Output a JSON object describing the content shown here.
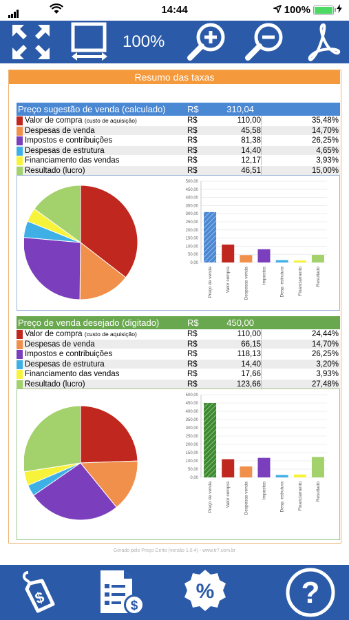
{
  "status_bar": {
    "time": "14:44",
    "battery": "100%"
  },
  "toolbar": {
    "zoom": "100%"
  },
  "report": {
    "title": "Resumo das taxas",
    "currency": "R$",
    "footer": "Gerado pelo Preço Certo (versão 1.0.4) - www.tr7.com.br",
    "colors": {
      "blue_header": "#4a88d4",
      "green_header": "#6aa84f"
    },
    "rows_labels": [
      {
        "label": "Valor de compra",
        "note": "(custo de aquisição)",
        "color": "#c0271e"
      },
      {
        "label": "Despesas de venda",
        "note": "",
        "color": "#f0904a"
      },
      {
        "label": "Impostos e contribuições",
        "note": "",
        "color": "#7b3fbe"
      },
      {
        "label": "Despesas de estrutura",
        "note": "",
        "color": "#3fb0e6"
      },
      {
        "label": "Financiamento das vendas",
        "note": "",
        "color": "#f7f33a"
      },
      {
        "label": "Resultado (lucro)",
        "note": "",
        "color": "#a3d16b"
      }
    ],
    "section1": {
      "header": "Preço sugestão de venda (calculado)",
      "total": "310,04",
      "values": [
        "110,00",
        "45,58",
        "81,38",
        "14,40",
        "12,17",
        "46,51"
      ],
      "percents": [
        "35,48%",
        "14,70%",
        "26,25%",
        "4,65%",
        "3,93%",
        "15,00%"
      ]
    },
    "section2": {
      "header": "Preço de venda desejado (digitado)",
      "total": "450,00",
      "values": [
        "110,00",
        "66,15",
        "118,13",
        "14,40",
        "17,66",
        "123,66"
      ],
      "percents": [
        "24,44%",
        "14,70%",
        "26,25%",
        "3,20%",
        "3,93%",
        "27,48%"
      ]
    }
  },
  "chart_data": [
    {
      "type": "pie",
      "categories": [
        "Valor de compra",
        "Despesas de venda",
        "Impostos e contribuições",
        "Despesas de estrutura",
        "Financiamento das vendas",
        "Resultado (lucro)"
      ],
      "values": [
        35.48,
        14.7,
        26.25,
        4.65,
        3.93,
        15.0
      ]
    },
    {
      "type": "bar",
      "categories": [
        "Preço de venda",
        "Valor compra",
        "Despesas venda",
        "Impostos",
        "Desp. estrutura",
        "Financiamento",
        "Resultado"
      ],
      "values": [
        310.04,
        110.0,
        45.58,
        81.38,
        14.4,
        12.17,
        46.51
      ],
      "ylim": [
        0,
        500
      ],
      "yticks": [
        "0,00",
        "50,00",
        "100,00",
        "150,00",
        "200,00",
        "250,00",
        "300,00",
        "350,00",
        "400,00",
        "450,00",
        "500,00"
      ],
      "grid": true
    },
    {
      "type": "pie",
      "categories": [
        "Valor de compra",
        "Despesas de venda",
        "Impostos e contribuições",
        "Despesas de estrutura",
        "Financiamento das vendas",
        "Resultado (lucro)"
      ],
      "values": [
        24.44,
        14.7,
        26.25,
        3.2,
        3.93,
        27.48
      ]
    },
    {
      "type": "bar",
      "categories": [
        "Preço de venda",
        "Valor compra",
        "Despesas venda",
        "Impostos",
        "Desp. estrutura",
        "Financiamento",
        "Resultado"
      ],
      "values": [
        450.0,
        110.0,
        66.15,
        118.13,
        14.4,
        17.66,
        123.66
      ],
      "ylim": [
        0,
        500
      ],
      "yticks": [
        "0,00",
        "50,00",
        "100,00",
        "150,00",
        "200,00",
        "250,00",
        "300,00",
        "350,00",
        "400,00",
        "450,00",
        "500,00"
      ],
      "grid": true
    }
  ]
}
